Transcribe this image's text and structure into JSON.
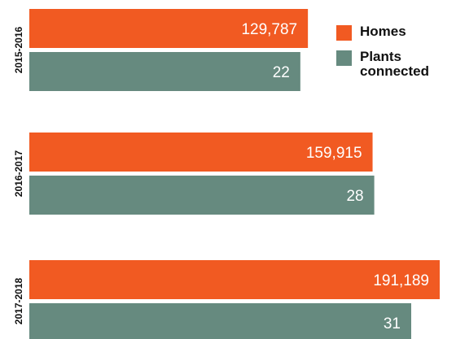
{
  "colors": {
    "homes": "#f15a22",
    "plants": "#668a7f"
  },
  "legend": {
    "homes_label": "Homes",
    "plants_label": "Plants\nconnected"
  },
  "chart_data": {
    "type": "bar",
    "orientation": "horizontal",
    "categories": [
      "2015-2016",
      "2016-2017",
      "2017-2018"
    ],
    "series": [
      {
        "name": "Homes",
        "values": [
          129787,
          159915,
          191189
        ],
        "labels": [
          "129,787",
          "159,915",
          "191,189"
        ]
      },
      {
        "name": "Plants connected",
        "values": [
          22,
          28,
          31
        ],
        "labels": [
          "22",
          "28",
          "31"
        ]
      }
    ],
    "legend_position": "top-right",
    "grid": false,
    "axis_labels_shown": false
  }
}
